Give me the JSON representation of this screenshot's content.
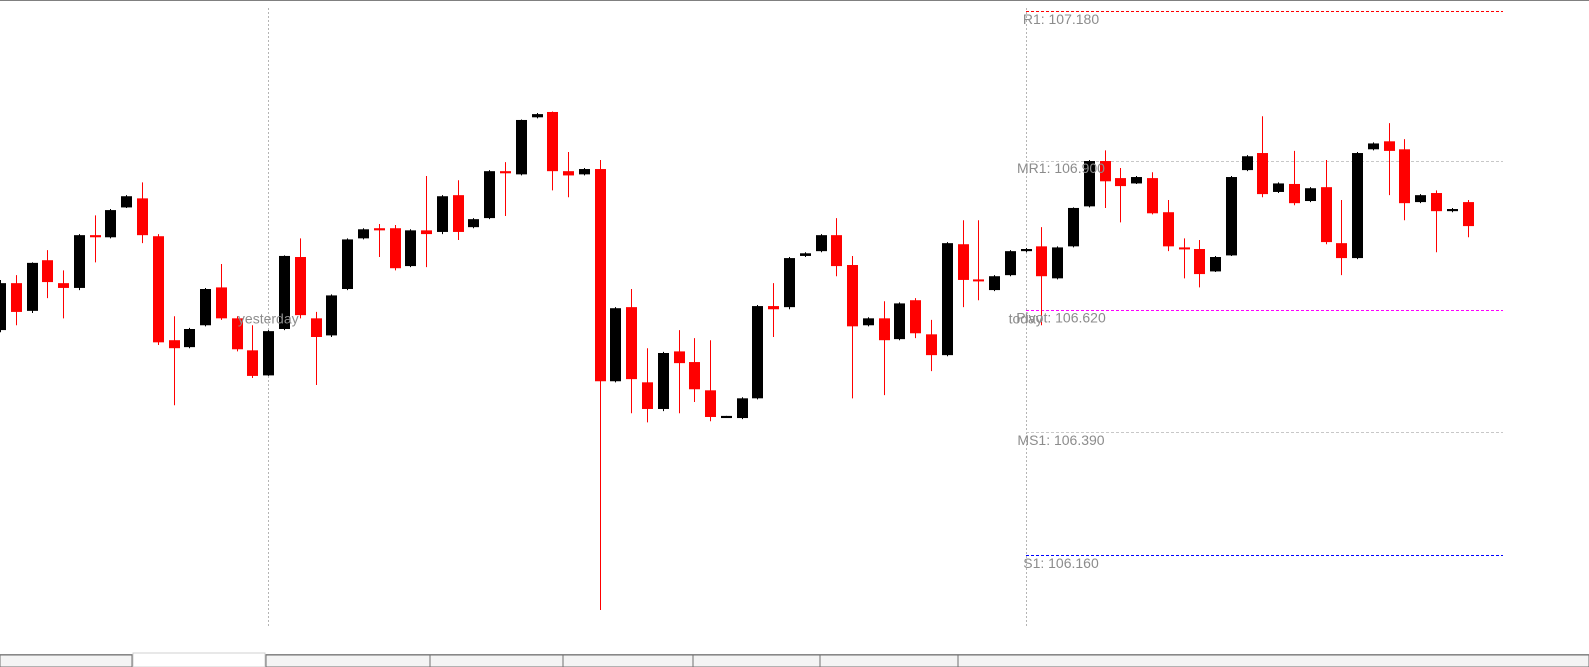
{
  "chart_data": {
    "type": "candlestick",
    "up_color": "#000000",
    "down_color": "#ff0000",
    "ylim": [
      105.982,
      107.201
    ],
    "open": [
      106.582,
      106.67,
      106.618,
      106.713,
      106.67,
      106.661,
      106.76,
      106.756,
      106.812,
      106.829,
      106.758,
      106.563,
      106.55,
      106.591,
      106.662,
      106.604,
      106.544,
      106.497,
      106.584,
      106.719,
      106.604,
      106.572,
      106.659,
      106.754,
      106.773,
      106.773,
      106.702,
      106.769,
      106.766,
      106.835,
      106.775,
      106.792,
      106.88,
      106.874,
      106.981,
      106.991,
      106.88,
      106.874,
      106.884,
      106.486,
      106.625,
      106.484,
      106.434,
      106.542,
      106.522,
      106.469,
      106.417,
      106.417,
      106.454,
      106.627,
      106.625,
      106.721,
      106.73,
      106.76,
      106.704,
      106.591,
      106.604,
      106.565,
      106.638,
      106.574,
      106.535,
      106.743,
      106.677,
      106.657,
      106.685,
      106.73,
      106.739,
      106.679,
      106.739,
      106.814,
      106.899,
      106.867,
      106.857,
      106.867,
      106.803,
      106.737,
      106.734,
      106.692,
      106.722,
      106.882,
      106.914,
      106.841,
      106.856,
      106.824,
      106.85,
      106.745,
      106.717,
      106.921,
      106.936,
      106.921,
      106.822,
      106.839,
      106.805,
      106.822
    ],
    "high": [
      106.676,
      106.685,
      106.709,
      106.732,
      106.694,
      106.762,
      106.797,
      106.809,
      106.835,
      106.859,
      106.762,
      106.608,
      106.586,
      106.661,
      106.706,
      106.608,
      106.591,
      106.582,
      106.722,
      106.754,
      106.616,
      106.649,
      106.754,
      106.773,
      106.781,
      106.779,
      106.771,
      106.871,
      106.835,
      106.863,
      106.792,
      106.882,
      106.897,
      106.977,
      106.989,
      106.992,
      106.916,
      106.886,
      106.901,
      106.625,
      106.659,
      106.548,
      106.541,
      106.582,
      106.567,
      106.563,
      106.421,
      106.456,
      106.629,
      106.67,
      106.719,
      106.728,
      106.762,
      106.792,
      106.721,
      106.606,
      106.636,
      106.634,
      106.642,
      106.601,
      106.747,
      106.788,
      106.788,
      106.685,
      106.732,
      106.736,
      106.775,
      106.739,
      106.812,
      106.901,
      106.919,
      106.886,
      106.871,
      106.878,
      106.826,
      106.754,
      106.751,
      106.721,
      106.871,
      106.91,
      106.983,
      106.859,
      106.918,
      106.85,
      106.901,
      106.826,
      106.916,
      106.934,
      106.97,
      106.94,
      106.837,
      106.844,
      106.811,
      106.826
    ],
    "low": [
      106.578,
      106.591,
      106.614,
      106.642,
      106.604,
      106.657,
      106.709,
      106.754,
      106.811,
      106.745,
      106.554,
      106.441,
      106.548,
      106.589,
      106.601,
      106.542,
      106.492,
      106.496,
      106.582,
      106.604,
      106.479,
      106.569,
      106.657,
      106.752,
      106.719,
      106.694,
      106.7,
      106.7,
      106.762,
      106.751,
      106.773,
      106.79,
      106.796,
      106.872,
      106.979,
      106.844,
      106.831,
      106.872,
      106.057,
      106.484,
      106.426,
      106.409,
      106.43,
      106.426,
      106.447,
      106.411,
      106.417,
      106.415,
      106.452,
      106.569,
      106.621,
      106.719,
      106.728,
      106.683,
      106.454,
      106.589,
      106.46,
      106.563,
      106.567,
      106.505,
      106.533,
      106.625,
      106.638,
      106.655,
      106.683,
      106.728,
      106.591,
      106.677,
      106.737,
      106.812,
      106.811,
      106.784,
      106.856,
      106.799,
      106.73,
      106.679,
      106.662,
      106.691,
      106.721,
      106.88,
      106.831,
      106.839,
      106.816,
      106.822,
      106.743,
      106.685,
      106.715,
      106.919,
      106.835,
      106.788,
      106.82,
      106.728,
      106.803,
      106.756
    ],
    "close": [
      106.67,
      106.616,
      106.708,
      106.672,
      106.661,
      106.76,
      106.756,
      106.807,
      106.833,
      106.76,
      106.559,
      106.548,
      106.584,
      106.659,
      106.604,
      106.546,
      106.496,
      106.58,
      106.721,
      106.61,
      106.569,
      106.647,
      106.752,
      106.771,
      106.769,
      106.698,
      106.769,
      106.762,
      106.833,
      106.766,
      106.79,
      106.88,
      106.876,
      106.976,
      106.987,
      106.88,
      106.872,
      106.884,
      106.486,
      106.623,
      106.49,
      106.434,
      106.539,
      106.52,
      106.471,
      106.419,
      106.421,
      106.454,
      106.627,
      106.621,
      106.717,
      106.726,
      106.76,
      106.702,
      106.589,
      106.604,
      106.563,
      106.632,
      106.576,
      106.535,
      106.745,
      106.676,
      106.674,
      106.683,
      106.73,
      106.734,
      106.683,
      106.737,
      106.811,
      106.899,
      106.861,
      106.852,
      106.869,
      106.801,
      106.739,
      106.734,
      106.687,
      106.719,
      106.869,
      106.908,
      106.837,
      106.857,
      106.82,
      106.848,
      106.747,
      106.717,
      106.914,
      106.932,
      106.918,
      106.82,
      106.835,
      106.805,
      106.809,
      106.777
    ],
    "separators": [
      {
        "label": "yesterday",
        "index": 17
      },
      {
        "label": "today",
        "index": 65
      }
    ],
    "levels": [
      {
        "label": "R1: 107.180",
        "value": 107.18,
        "color": "#ff0000"
      },
      {
        "label": "MR1: 106.900",
        "value": 106.9,
        "color": "#c8c8c8"
      },
      {
        "label": "Pivot: 106.620",
        "value": 106.62,
        "color": "#ff00ff"
      },
      {
        "label": "MS1: 106.390",
        "value": 106.39,
        "color": "#c8c8c8"
      },
      {
        "label": "S1: 106.160",
        "value": 106.16,
        "color": "#0000ff"
      }
    ]
  }
}
